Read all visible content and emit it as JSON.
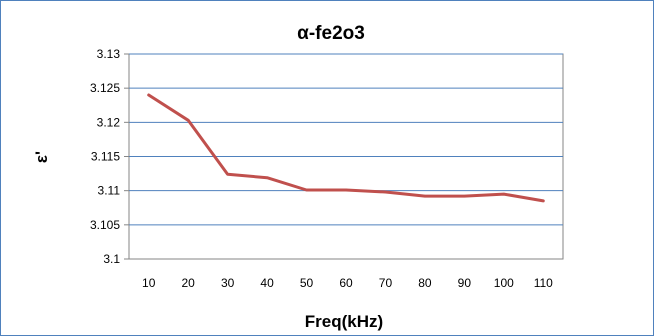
{
  "chart_data": {
    "type": "line",
    "title": "α-fe2o3",
    "xlabel": "Freq(kHz)",
    "ylabel": "ε'",
    "categories": [
      "10",
      "20",
      "30",
      "40",
      "50",
      "60",
      "70",
      "80",
      "90",
      "100",
      "110"
    ],
    "series": [
      {
        "values": [
          3.124,
          3.1203,
          3.1124,
          3.1119,
          3.1101,
          3.1101,
          3.1098,
          3.1092,
          3.1092,
          3.1095,
          3.1085
        ]
      }
    ],
    "ylim": [
      3.1,
      3.13
    ],
    "yticks": [
      "3.1",
      "3.105",
      "3.11",
      "3.115",
      "3.12",
      "3.125",
      "3.13"
    ],
    "grid": true,
    "legend": "none",
    "colors": {
      "line": "#c0504d",
      "grid": "#4f81bd",
      "border": "#4f81bd",
      "axis": "#868686"
    }
  }
}
